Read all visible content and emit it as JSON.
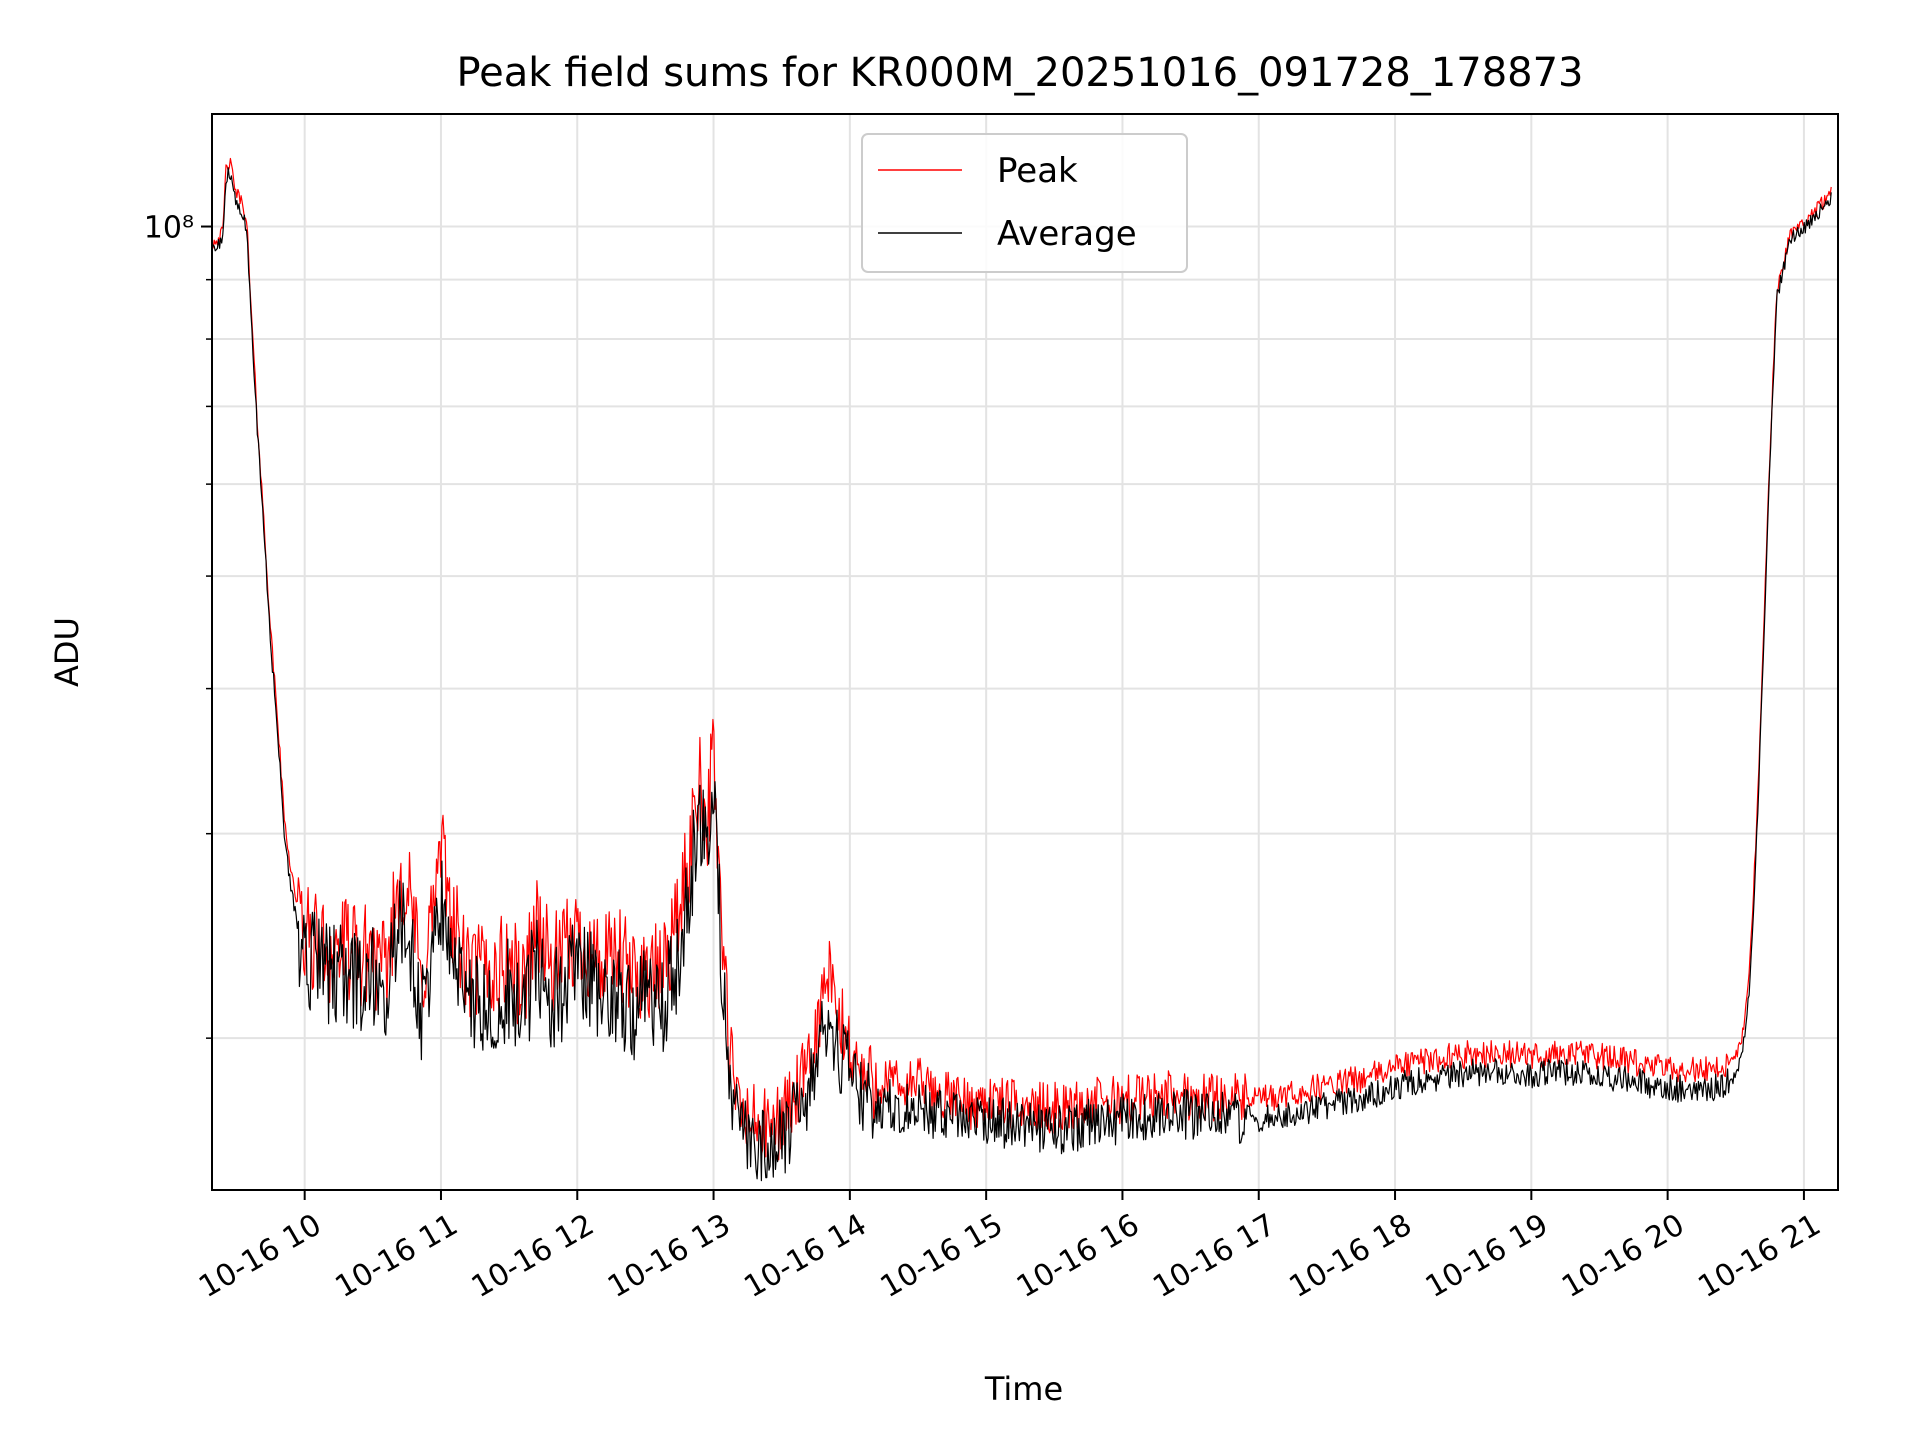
{
  "chart_data": {
    "type": "line",
    "title": "Peak field sums for KR000M_20251016_091728_178873",
    "xlabel": "Time",
    "ylabel": "ADU",
    "y_scale": "log",
    "xlim": [
      9.32,
      21.25
    ],
    "ylim": [
      14800000,
      125000000
    ],
    "x_tick_values": [
      10,
      11,
      12,
      13,
      14,
      15,
      16,
      17,
      18,
      19,
      20,
      21
    ],
    "x_tick_labels": [
      "10-16 10",
      "10-16 11",
      "10-16 12",
      "10-16 13",
      "10-16 14",
      "10-16 15",
      "10-16 16",
      "10-16 17",
      "10-16 18",
      "10-16 19",
      "10-16 20",
      "10-16 21"
    ],
    "x_tick_rotation": 30,
    "y_tick_values": [
      100000000
    ],
    "y_tick_labels": [
      "10⁸"
    ],
    "y_minor_ticks": [
      20000000,
      30000000,
      40000000,
      50000000,
      60000000,
      70000000,
      80000000,
      90000000
    ],
    "grid": true,
    "legend": {
      "position": "top-center",
      "entries": [
        {
          "name": "Peak",
          "color": "#ff0000"
        },
        {
          "name": "Average",
          "color": "#000000"
        }
      ]
    },
    "series": [
      {
        "name": "Average",
        "color": "#000000",
        "x": [
          9.32,
          9.4,
          9.42,
          9.45,
          9.5,
          9.55,
          9.58,
          9.6,
          9.62,
          9.65,
          9.7,
          9.75,
          9.8,
          9.85,
          9.9,
          9.95,
          10.0,
          10.1,
          10.2,
          10.3,
          10.4,
          10.5,
          10.55,
          10.6,
          10.7,
          10.8,
          10.85,
          10.9,
          11.0,
          11.1,
          11.2,
          11.3,
          11.4,
          11.5,
          11.6,
          11.7,
          11.8,
          11.9,
          12.0,
          12.1,
          12.2,
          12.3,
          12.4,
          12.5,
          12.6,
          12.7,
          12.8,
          12.9,
          12.95,
          13.0,
          13.05,
          13.1,
          13.15,
          13.2,
          13.3,
          13.4,
          13.5,
          13.6,
          13.7,
          13.8,
          13.85,
          13.9,
          14.0,
          14.1,
          14.2,
          14.3,
          14.4,
          14.5,
          14.6,
          14.7,
          14.8,
          14.9,
          15.0,
          15.2,
          15.4,
          15.6,
          15.8,
          16.0,
          16.2,
          16.4,
          16.6,
          16.8,
          17.0,
          17.2,
          17.4,
          17.6,
          17.8,
          18.0,
          18.2,
          18.4,
          18.6,
          18.8,
          19.0,
          19.2,
          19.4,
          19.6,
          19.8,
          20.0,
          20.2,
          20.3,
          20.4,
          20.5,
          20.55,
          20.6,
          20.65,
          20.7,
          20.75,
          20.8,
          20.9,
          21.0,
          21.1,
          21.2
        ],
        "values": [
          96000000,
          98000000,
          110000000,
          112000000,
          105000000,
          103000000,
          98000000,
          87000000,
          79000000,
          68000000,
          55000000,
          44000000,
          37000000,
          30000000,
          27000000,
          25000000,
          24000000,
          23500000,
          23000000,
          23200000,
          22500000,
          23000000,
          21500000,
          22000000,
          26000000,
          24000000,
          21000000,
          23000000,
          27000000,
          24000000,
          21500000,
          22000000,
          21800000,
          22500000,
          21000000,
          24000000,
          22000000,
          22500000,
          23500000,
          22800000,
          22000000,
          22500000,
          21500000,
          22000000,
          21500000,
          23000000,
          26000000,
          32000000,
          29000000,
          33000000,
          25000000,
          20000000,
          17500000,
          16800000,
          16500000,
          16200000,
          16700000,
          17300000,
          18000000,
          20500000,
          21500000,
          20000000,
          19000000,
          18000000,
          17800000,
          17700000,
          17500000,
          17800000,
          17400000,
          17300000,
          17200000,
          17000000,
          17200000,
          17000000,
          16900000,
          16900000,
          17100000,
          17200000,
          17300000,
          17400000,
          17300000,
          17300000,
          17100000,
          17200000,
          17500000,
          17700000,
          17900000,
          18300000,
          18500000,
          18700000,
          18800000,
          18800000,
          18700000,
          18800000,
          18800000,
          18600000,
          18400000,
          18200000,
          18200000,
          18200000,
          18300000,
          18600000,
          19500000,
          22000000,
          29000000,
          42000000,
          63000000,
          87000000,
          98000000,
          100000000,
          103000000,
          106000000
        ]
      },
      {
        "name": "Peak",
        "color": "#ff0000",
        "x": [
          9.32,
          9.4,
          9.42,
          9.45,
          9.5,
          9.55,
          9.58,
          9.6,
          9.62,
          9.65,
          9.7,
          9.75,
          9.8,
          9.85,
          9.9,
          9.95,
          10.0,
          10.1,
          10.2,
          10.3,
          10.4,
          10.5,
          10.55,
          10.6,
          10.7,
          10.8,
          10.85,
          10.9,
          11.0,
          11.1,
          11.2,
          11.3,
          11.4,
          11.5,
          11.6,
          11.7,
          11.8,
          11.9,
          12.0,
          12.1,
          12.2,
          12.3,
          12.4,
          12.5,
          12.6,
          12.7,
          12.8,
          12.9,
          12.95,
          13.0,
          13.05,
          13.1,
          13.15,
          13.2,
          13.3,
          13.4,
          13.5,
          13.6,
          13.7,
          13.8,
          13.85,
          13.9,
          14.0,
          14.1,
          14.2,
          14.3,
          14.4,
          14.5,
          14.6,
          14.7,
          14.8,
          14.9,
          15.0,
          15.2,
          15.4,
          15.6,
          15.8,
          16.0,
          16.2,
          16.4,
          16.6,
          16.8,
          17.0,
          17.2,
          17.4,
          17.6,
          17.8,
          18.0,
          18.2,
          18.4,
          18.6,
          18.8,
          19.0,
          19.2,
          19.4,
          19.6,
          19.8,
          20.0,
          20.2,
          20.3,
          20.4,
          20.5,
          20.55,
          20.6,
          20.65,
          20.7,
          20.75,
          20.8,
          20.9,
          21.0,
          21.1,
          21.2
        ],
        "values": [
          97000000,
          99000000,
          112000000,
          114000000,
          107000000,
          105000000,
          99000000,
          88000000,
          80000000,
          69000000,
          56000000,
          45000000,
          38000000,
          31000000,
          28000000,
          26000000,
          25000000,
          24500000,
          24200000,
          24500000,
          23800000,
          24500000,
          23000000,
          23500000,
          28500000,
          26000000,
          22500000,
          24500000,
          29500000,
          25500000,
          23000000,
          23500000,
          23200000,
          24000000,
          22500000,
          26000000,
          23500000,
          24000000,
          25000000,
          24300000,
          23500000,
          24000000,
          23000000,
          23500000,
          23000000,
          25000000,
          28000000,
          35000000,
          31000000,
          36000000,
          27000000,
          21000000,
          18300000,
          17500000,
          17200000,
          16900000,
          17400000,
          18100000,
          19000000,
          22000000,
          23000000,
          21300000,
          20000000,
          18800000,
          18600000,
          18500000,
          18300000,
          18600000,
          18100000,
          18000000,
          17900000,
          17700000,
          17900000,
          17700000,
          17600000,
          17600000,
          17800000,
          17900000,
          18000000,
          18100000,
          18000000,
          18000000,
          17800000,
          17900000,
          18200000,
          18400000,
          18600000,
          19000000,
          19200000,
          19400000,
          19500000,
          19500000,
          19400000,
          19500000,
          19500000,
          19300000,
          19100000,
          18900000,
          18900000,
          18900000,
          19000000,
          19300000,
          20200000,
          22800000,
          30000000,
          43000000,
          64000000,
          88000000,
          99000000,
          101000000,
          104000000,
          107000000
        ]
      }
    ]
  }
}
